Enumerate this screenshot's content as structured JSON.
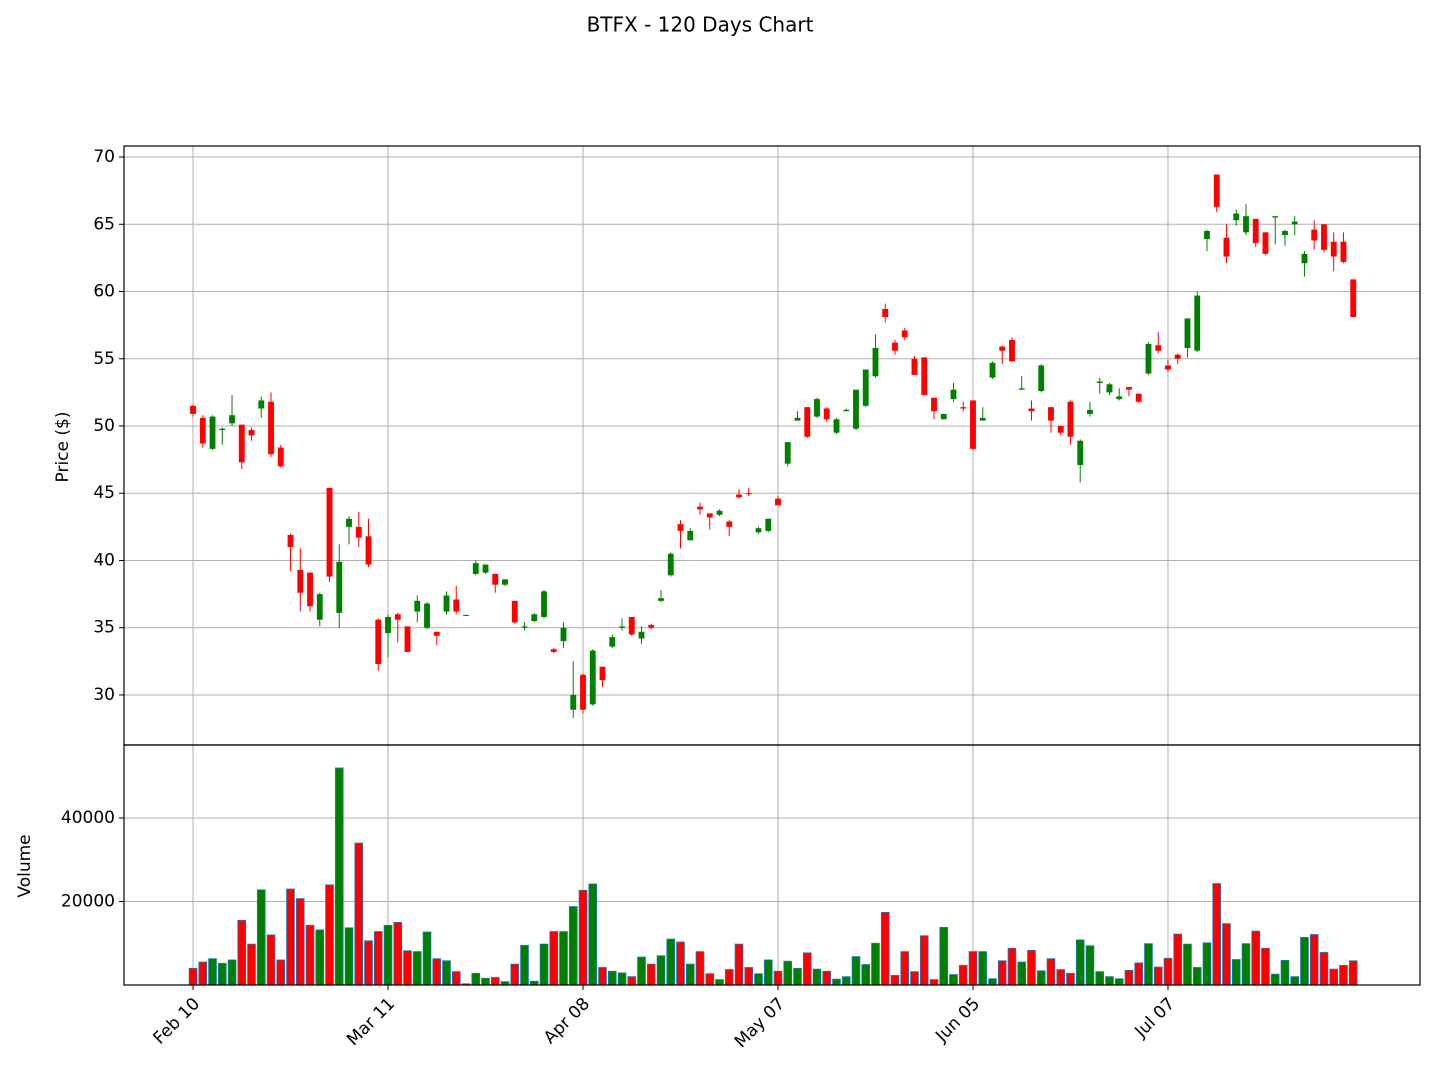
{
  "chart_data": {
    "type": "candlestick",
    "title": "BTFX - 120 Days Chart",
    "ylabel": "Price ($)",
    "categories": [
      "Feb 10",
      null,
      null,
      null,
      null,
      null,
      null,
      null,
      null,
      null,
      null,
      null,
      null,
      null,
      null,
      null,
      null,
      null,
      null,
      null,
      "Mar 11",
      null,
      null,
      null,
      null,
      null,
      null,
      null,
      null,
      null,
      null,
      null,
      null,
      null,
      null,
      null,
      null,
      null,
      null,
      null,
      "Apr 08",
      null,
      null,
      null,
      null,
      null,
      null,
      null,
      null,
      null,
      null,
      null,
      null,
      null,
      null,
      null,
      null,
      null,
      null,
      null,
      "May 07",
      null,
      null,
      null,
      null,
      null,
      null,
      null,
      null,
      null,
      null,
      null,
      null,
      null,
      null,
      null,
      null,
      null,
      null,
      null,
      "Jun 05",
      null,
      null,
      null,
      null,
      null,
      null,
      null,
      null,
      null,
      null,
      null,
      null,
      null,
      null,
      null,
      null,
      null,
      null,
      null,
      "Jul 07",
      null,
      null,
      null,
      null,
      null,
      null,
      null,
      null,
      null,
      null,
      null,
      null,
      null,
      null,
      null,
      null,
      null,
      null,
      null
    ],
    "open": [
      51.5,
      50.6,
      48.3,
      49.7,
      50.2,
      50.1,
      49.7,
      51.3,
      51.8,
      48.4,
      41.9,
      39.3,
      39.1,
      35.6,
      45.4,
      36.1,
      42.5,
      42.5,
      41.8,
      35.6,
      34.6,
      36.0,
      35.1,
      36.2,
      35.0,
      34.7,
      36.2,
      37.1,
      35.95,
      39.0,
      39.1,
      39.0,
      38.2,
      37.0,
      35.0,
      35.5,
      35.8,
      33.4,
      34.0,
      28.9,
      31.5,
      29.3,
      32.1,
      33.6,
      35.0,
      35.8,
      34.2,
      35.2,
      37.0,
      38.9,
      42.7,
      41.5,
      44.0,
      43.5,
      43.4,
      42.9,
      44.9,
      45.0,
      42.1,
      42.2,
      44.6,
      47.2,
      50.4,
      51.4,
      50.7,
      51.3,
      49.5,
      51.1,
      49.8,
      51.5,
      53.7,
      58.7,
      56.2,
      57.1,
      55.0,
      55.1,
      52.1,
      50.5,
      52.0,
      51.4,
      51.9,
      50.4,
      53.6,
      55.9,
      56.4,
      52.7,
      51.3,
      52.6,
      51.4,
      50.0,
      51.8,
      47.1,
      50.9,
      53.2,
      52.5,
      52.0,
      52.9,
      52.4,
      53.9,
      56.0,
      54.5,
      55.3,
      55.8,
      55.6,
      63.9,
      68.7,
      64.0,
      65.3,
      64.4,
      65.4,
      64.4,
      65.5,
      64.2,
      65.0,
      62.1,
      64.6,
      65.0,
      63.7,
      63.7,
      60.9
    ],
    "high": [
      51.6,
      50.8,
      50.8,
      49.9,
      52.3,
      50.1,
      49.9,
      52.2,
      52.5,
      48.6,
      42.0,
      40.9,
      39.1,
      37.6,
      45.4,
      41.2,
      43.3,
      43.6,
      43.1,
      35.7,
      36.0,
      36.1,
      35.1,
      37.4,
      36.9,
      34.7,
      37.7,
      38.1,
      36.0,
      40.0,
      39.7,
      39.0,
      38.6,
      37.0,
      35.4,
      36.1,
      37.8,
      33.5,
      35.4,
      32.5,
      31.6,
      33.4,
      32.1,
      34.5,
      35.7,
      35.8,
      35.1,
      35.3,
      37.8,
      40.6,
      43.0,
      42.4,
      44.3,
      43.5,
      43.8,
      43.0,
      45.3,
      45.4,
      42.5,
      43.1,
      44.8,
      48.8,
      51.1,
      51.4,
      52.1,
      51.4,
      50.6,
      51.3,
      52.7,
      54.2,
      56.8,
      59.1,
      56.4,
      57.3,
      55.2,
      55.1,
      52.1,
      50.9,
      53.2,
      51.8,
      51.9,
      51.4,
      54.8,
      56.0,
      56.6,
      53.7,
      51.9,
      54.6,
      51.4,
      50.0,
      51.9,
      49.0,
      51.8,
      53.6,
      53.2,
      52.8,
      52.9,
      52.4,
      56.2,
      57.0,
      54.9,
      55.4,
      58.0,
      60.0,
      64.6,
      68.7,
      65.0,
      66.1,
      66.5,
      65.4,
      64.4,
      65.6,
      64.6,
      65.6,
      63.0,
      65.3,
      65.0,
      64.4,
      64.4,
      60.9
    ],
    "low": [
      50.7,
      48.4,
      48.2,
      48.6,
      50.0,
      46.8,
      48.9,
      50.6,
      47.7,
      46.9,
      39.2,
      36.2,
      36.2,
      35.1,
      38.4,
      35.0,
      41.2,
      41.0,
      39.5,
      31.8,
      32.8,
      33.9,
      33.2,
      35.4,
      34.9,
      33.7,
      36.0,
      36.0,
      35.9,
      38.9,
      39.0,
      37.6,
      38.1,
      35.3,
      34.8,
      35.4,
      35.7,
      33.1,
      33.5,
      28.3,
      28.6,
      29.2,
      30.6,
      33.5,
      34.8,
      34.4,
      33.8,
      34.9,
      36.9,
      38.8,
      40.9,
      41.5,
      43.4,
      42.3,
      43.3,
      41.8,
      44.6,
      44.8,
      42.0,
      42.1,
      44.1,
      47.0,
      50.4,
      49.1,
      50.6,
      50.3,
      49.4,
      51.1,
      49.7,
      51.4,
      53.6,
      57.7,
      55.3,
      56.4,
      53.8,
      52.3,
      50.5,
      50.5,
      51.8,
      51.1,
      48.2,
      50.4,
      53.5,
      54.6,
      54.8,
      52.7,
      50.4,
      52.5,
      49.5,
      49.3,
      48.6,
      45.8,
      50.7,
      52.4,
      52.3,
      51.9,
      52.2,
      51.7,
      53.8,
      55.4,
      54.0,
      54.6,
      55.1,
      55.5,
      63.0,
      65.9,
      62.1,
      64.9,
      64.2,
      63.3,
      62.7,
      63.5,
      63.4,
      64.2,
      61.1,
      63.1,
      62.9,
      61.5,
      62.1,
      58.1
    ],
    "close": [
      50.9,
      48.7,
      50.7,
      49.8,
      50.8,
      47.3,
      49.3,
      51.9,
      47.9,
      47.0,
      41.0,
      37.6,
      36.6,
      37.5,
      38.8,
      39.9,
      43.1,
      41.7,
      39.7,
      32.3,
      35.8,
      35.6,
      33.2,
      37.0,
      36.8,
      34.4,
      37.4,
      36.2,
      35.9,
      39.8,
      39.7,
      38.2,
      38.6,
      35.4,
      35.1,
      36.0,
      37.7,
      33.2,
      35.0,
      30.0,
      28.9,
      33.3,
      31.1,
      34.3,
      35.1,
      34.5,
      34.7,
      35.0,
      37.2,
      40.5,
      42.2,
      42.2,
      43.8,
      43.2,
      43.7,
      42.5,
      44.7,
      44.95,
      42.4,
      43.1,
      44.1,
      48.8,
      50.6,
      49.2,
      52.0,
      50.5,
      50.5,
      51.2,
      52.7,
      54.2,
      55.8,
      58.1,
      55.6,
      56.6,
      53.8,
      52.3,
      51.1,
      50.9,
      52.7,
      51.3,
      48.3,
      50.6,
      54.7,
      55.6,
      54.8,
      52.8,
      51.1,
      54.5,
      50.4,
      49.5,
      49.2,
      48.9,
      51.2,
      53.3,
      53.1,
      52.2,
      52.7,
      51.8,
      56.1,
      55.6,
      54.2,
      55.0,
      58.0,
      59.7,
      64.5,
      66.3,
      62.6,
      65.8,
      65.6,
      63.6,
      62.8,
      65.6,
      64.5,
      65.2,
      62.8,
      63.8,
      63.1,
      62.6,
      62.2,
      58.1
    ],
    "up_color": "#008000",
    "down_color": "#ff0000",
    "xlim": [
      -7.08,
      125.85
    ],
    "ylim": [
      26.28,
      70.82
    ],
    "yticks": [
      30,
      35,
      40,
      45,
      50,
      55,
      60,
      65,
      70
    ],
    "grid": true,
    "volume": {
      "ylabel": "Volume",
      "edge_color": "#1f77b4",
      "values": [
        4000,
        5500,
        6300,
        5200,
        6000,
        15500,
        9800,
        22800,
        12000,
        6000,
        23000,
        20700,
        14300,
        13200,
        24000,
        52000,
        13700,
        34000,
        10600,
        12800,
        14300,
        15000,
        8200,
        8000,
        12700,
        6300,
        5800,
        3200,
        300,
        2800,
        1600,
        1800,
        800,
        5000,
        9500,
        900,
        9800,
        12800,
        12800,
        18800,
        22700,
        24200,
        4200,
        3300,
        2900,
        2000,
        6700,
        5000,
        7000,
        11000,
        10300,
        5000,
        8000,
        2700,
        1300,
        3700,
        9800,
        4200,
        2700,
        6000,
        3300,
        5700,
        4000,
        7700,
        3800,
        3300,
        1400,
        2000,
        6800,
        4900,
        10000,
        17400,
        2300,
        8000,
        3200,
        11800,
        1300,
        13800,
        2500,
        4700,
        8000,
        8000,
        1500,
        5800,
        8800,
        5500,
        8300,
        3400,
        6300,
        3700,
        2800,
        10800,
        9400,
        3200,
        2000,
        1500,
        3500,
        5300,
        9900,
        4300,
        6400,
        12200,
        9800,
        4200,
        10100,
        24300,
        14700,
        6100,
        9900,
        12900,
        8800,
        2600,
        5900,
        2000,
        11400,
        12100,
        7800,
        3800,
        4700,
        5800
      ],
      "ylim": [
        0,
        57500
      ],
      "yticks": [
        20000,
        40000
      ]
    }
  }
}
